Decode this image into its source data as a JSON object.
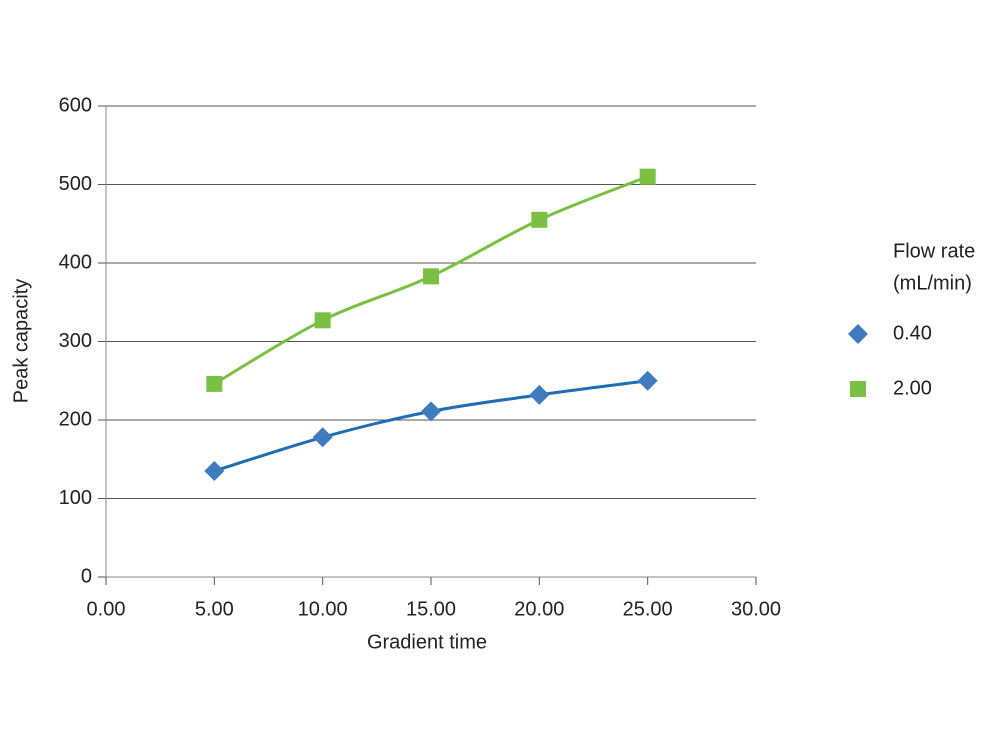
{
  "chart_data": {
    "type": "scatter",
    "xlabel": "Gradient time",
    "ylabel": "Peak capacity",
    "legend_title": [
      "Flow rate",
      "(mL/min)"
    ],
    "legend": "right",
    "grid": true,
    "xlim": [
      0,
      30
    ],
    "xticks": [
      {
        "value": 0,
        "label": "0.00"
      },
      {
        "value": 5,
        "label": "5.00"
      },
      {
        "value": 10,
        "label": "10.00"
      },
      {
        "value": 15,
        "label": "15.00"
      },
      {
        "value": 20,
        "label": "20.00"
      },
      {
        "value": 25,
        "label": "25.00"
      },
      {
        "value": 30,
        "label": "30.00"
      }
    ],
    "ylim": [
      0,
      600
    ],
    "yticks": [
      0,
      100,
      200,
      300,
      400,
      500,
      600
    ],
    "series": [
      {
        "name": "0.40",
        "color": "#3f7cbf",
        "line_color": "#1f6db3",
        "marker": "diamond",
        "x": [
          5,
          10,
          15,
          20,
          25
        ],
        "values": [
          135,
          178,
          211,
          232,
          250
        ]
      },
      {
        "name": "2.00",
        "color": "#7ac143",
        "line_color": "#7ac143",
        "marker": "square",
        "x": [
          5,
          10,
          15,
          20,
          25
        ],
        "values": [
          246,
          327,
          383,
          455,
          510
        ]
      }
    ]
  }
}
